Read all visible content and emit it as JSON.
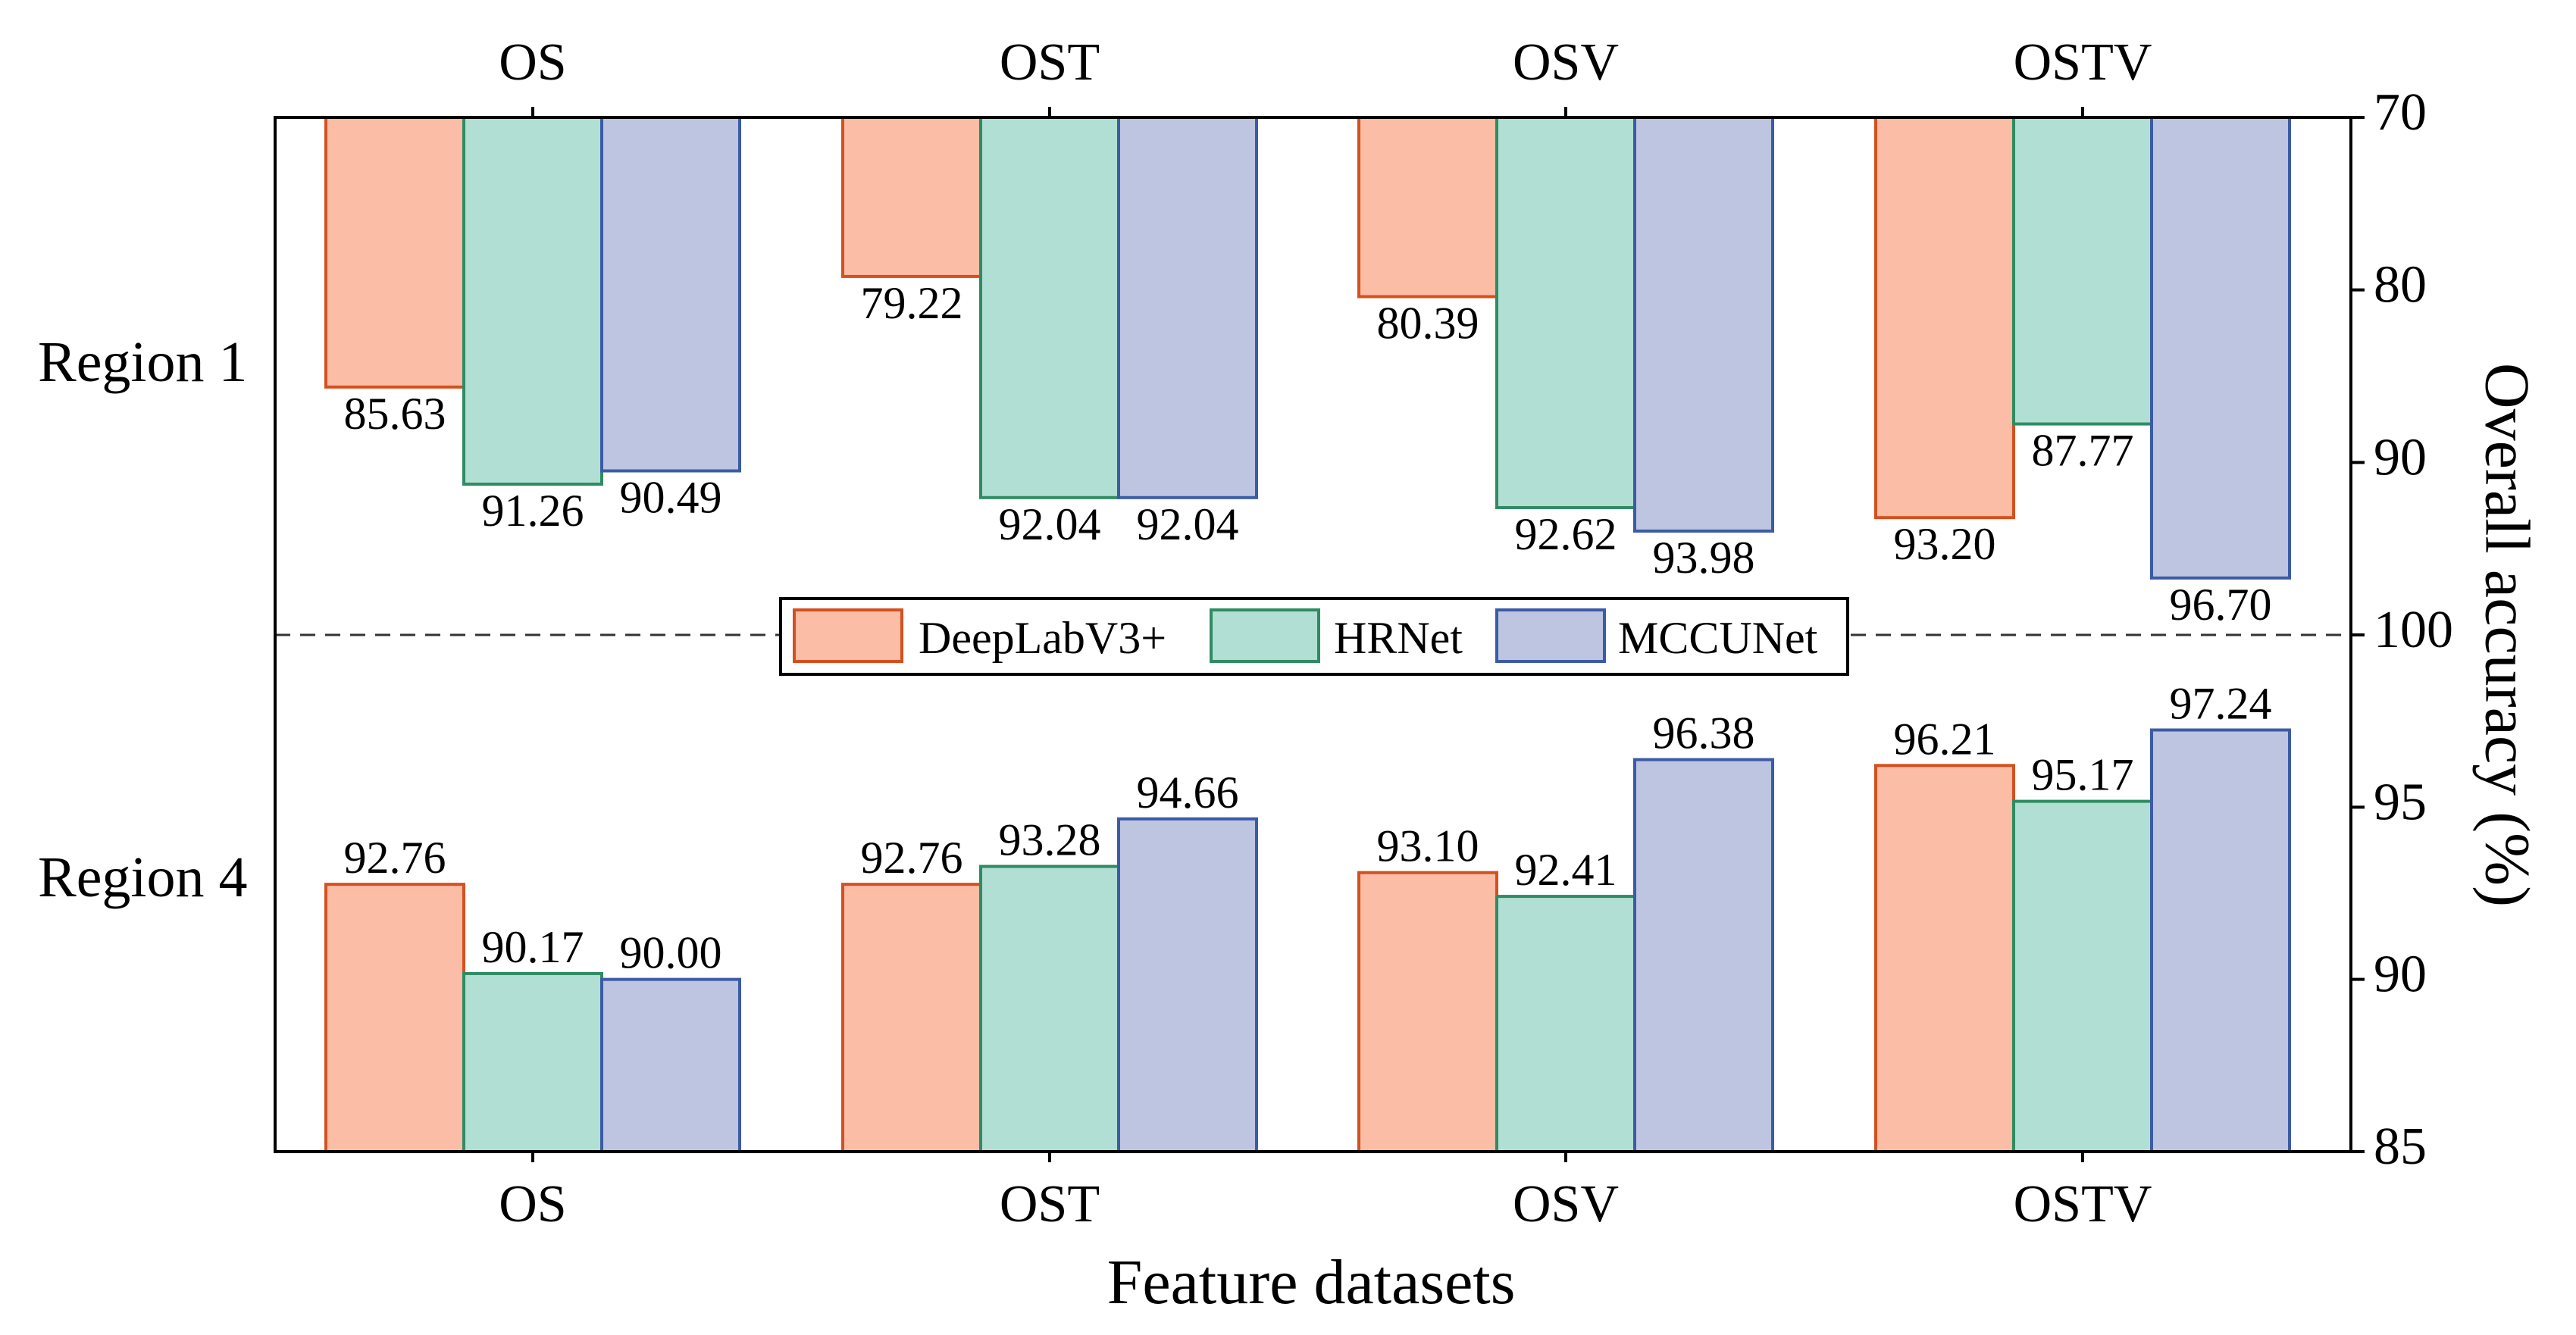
{
  "chart_data": {
    "type": "bar",
    "orientation": "vertical",
    "xlabel": "Feature datasets",
    "ylabel": "Overall accuracy (%)",
    "categories": [
      "OS",
      "OST",
      "OSV",
      "OSTV"
    ],
    "legend_placement": "center",
    "panels": [
      {
        "name": "Region 1",
        "direction": "downward",
        "ylim": [
          70,
          100
        ],
        "yticks": [
          "70",
          "80",
          "90",
          "100"
        ],
        "series": [
          {
            "name": "DeepLabV3+",
            "values": [
              85.63,
              79.22,
              80.39,
              93.2
            ],
            "labels": [
              "85.63",
              "79.22",
              "80.39",
              "93.20"
            ]
          },
          {
            "name": "HRNet",
            "values": [
              91.26,
              92.04,
              92.62,
              87.77
            ],
            "labels": [
              "91.26",
              "92.04",
              "92.62",
              "87.77"
            ]
          },
          {
            "name": "MCCUNet",
            "values": [
              90.49,
              92.04,
              93.98,
              96.7
            ],
            "labels": [
              "90.49",
              "92.04",
              "93.98",
              "96.70"
            ]
          }
        ]
      },
      {
        "name": "Region 4",
        "direction": "upward",
        "ylim": [
          85,
          100
        ],
        "yticks": [
          "85",
          "90",
          "95",
          "100"
        ],
        "series": [
          {
            "name": "DeepLabV3+",
            "values": [
              92.76,
              92.76,
              93.1,
              96.21
            ],
            "labels": [
              "92.76",
              "92.76",
              "93.10",
              "96.21"
            ]
          },
          {
            "name": "HRNet",
            "values": [
              90.17,
              93.28,
              92.41,
              95.17
            ],
            "labels": [
              "90.17",
              "93.28",
              "92.41",
              "95.17"
            ]
          },
          {
            "name": "MCCUNet",
            "values": [
              90.0,
              94.66,
              96.38,
              97.24
            ],
            "labels": [
              "90.00",
              "94.66",
              "96.38",
              "97.24"
            ]
          }
        ]
      }
    ],
    "series_styles": [
      {
        "name": "DeepLabV3+",
        "fill": "#FBBDA5",
        "stroke": "#D4501E"
      },
      {
        "name": "HRNet",
        "fill": "#B1DFD3",
        "stroke": "#2E8B63"
      },
      {
        "name": "MCCUNet",
        "fill": "#BDC5E0",
        "stroke": "#3B5BA5"
      }
    ]
  }
}
